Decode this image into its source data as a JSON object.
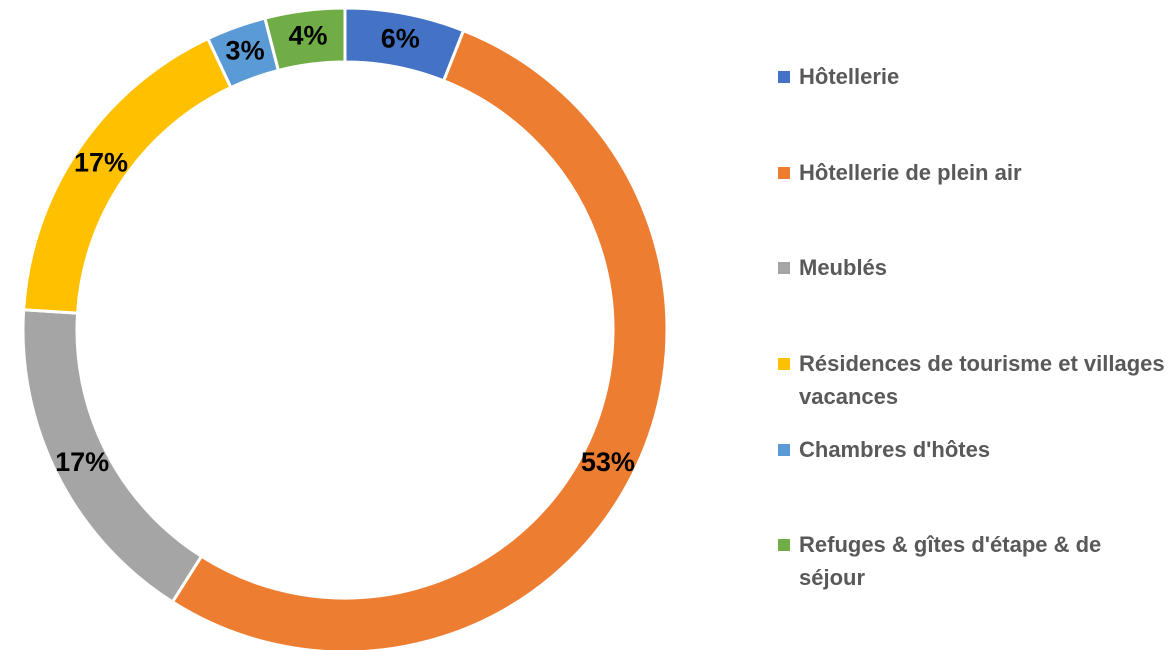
{
  "chart_data": {
    "type": "donut",
    "categories": [
      "Hôtellerie",
      "Hôtellerie de plein air",
      "Meublés",
      "Résidences de tourisme et villages vacances",
      "Chambres d'hôtes",
      "Refuges & gîtes d'étape & de séjour"
    ],
    "values": [
      6,
      53,
      17,
      17,
      3,
      4
    ],
    "value_labels": [
      "6%",
      "53%",
      "17%",
      "17%",
      "3%",
      "4%"
    ],
    "colors": [
      "#4472c4",
      "#ed7d31",
      "#a5a5a5",
      "#ffc000",
      "#5b9bd5",
      "#70ad47"
    ],
    "legend": "right"
  }
}
